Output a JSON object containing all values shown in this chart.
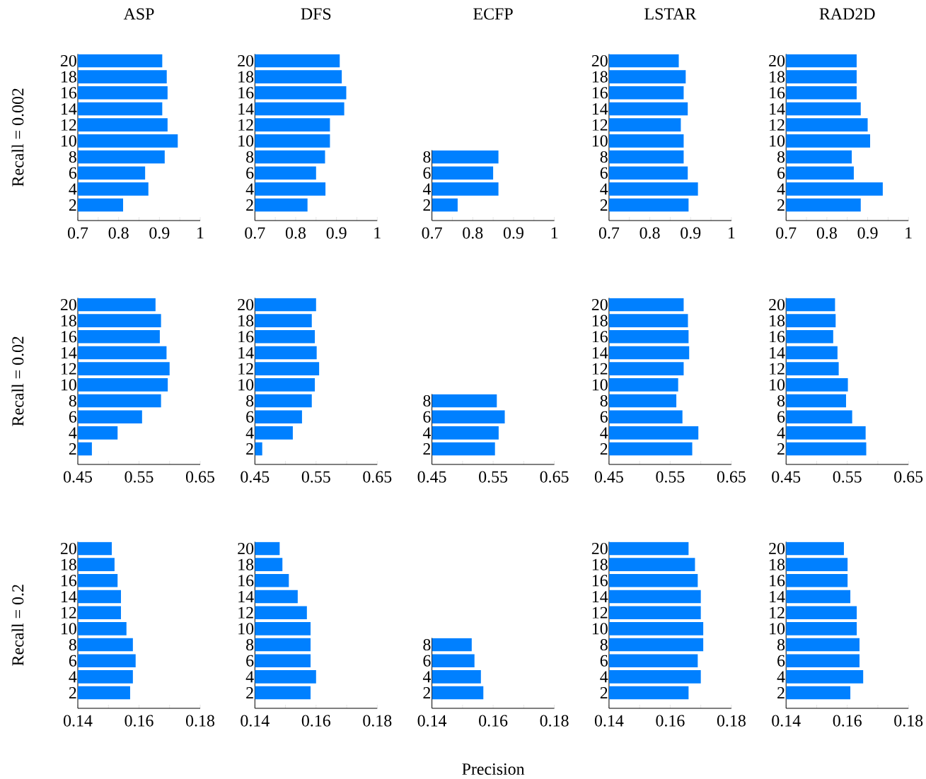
{
  "chart_data": [
    {
      "type": "bar",
      "orientation": "horizontal",
      "title": "ASP",
      "ylabel": "Recall = 0.002",
      "color": "#0080ff",
      "categories": [
        "20",
        "18",
        "16",
        "14",
        "12",
        "10",
        "8",
        "6",
        "4",
        "2"
      ],
      "values": [
        0.907,
        0.918,
        0.92,
        0.907,
        0.92,
        0.945,
        0.913,
        0.865,
        0.873,
        0.811
      ],
      "xlim": [
        0.7,
        1
      ],
      "xticks": [
        0.7,
        {
          "value": 0.75,
          "label": null
        },
        0.8,
        {
          "value": 0.85,
          "label": null
        },
        0.9,
        {
          "value": 0.95,
          "label": null
        },
        1
      ]
    },
    {
      "type": "bar",
      "orientation": "horizontal",
      "title": "DFS",
      "color": "#0080ff",
      "categories": [
        "20",
        "18",
        "16",
        "14",
        "12",
        "10",
        "8",
        "6",
        "4",
        "2"
      ],
      "values": [
        0.908,
        0.913,
        0.924,
        0.919,
        0.884,
        0.884,
        0.872,
        0.85,
        0.873,
        0.829
      ],
      "xlim": [
        0.7,
        1
      ],
      "xticks": [
        0.7,
        {
          "value": 0.75,
          "label": null
        },
        0.8,
        {
          "value": 0.85,
          "label": null
        },
        0.9,
        {
          "value": 0.95,
          "label": null
        },
        1
      ]
    },
    {
      "type": "bar",
      "orientation": "horizontal",
      "title": "ECFP",
      "color": "#0080ff",
      "categories": [
        "8",
        "6",
        "4",
        "2"
      ],
      "values": [
        0.863,
        0.85,
        0.863,
        0.763
      ],
      "xlim": [
        0.7,
        1
      ],
      "xticks": [
        0.7,
        {
          "value": 0.75,
          "label": null
        },
        0.8,
        {
          "value": 0.85,
          "label": null
        },
        0.9,
        {
          "value": 0.95,
          "label": null
        },
        1
      ]
    },
    {
      "type": "bar",
      "orientation": "horizontal",
      "title": "LSTAR",
      "color": "#0080ff",
      "categories": [
        "20",
        "18",
        "16",
        "14",
        "12",
        "10",
        "8",
        "6",
        "4",
        "2"
      ],
      "values": [
        0.871,
        0.888,
        0.883,
        0.893,
        0.876,
        0.883,
        0.883,
        0.893,
        0.918,
        0.895
      ],
      "xlim": [
        0.7,
        1
      ],
      "xticks": [
        0.7,
        {
          "value": 0.75,
          "label": null
        },
        0.8,
        {
          "value": 0.85,
          "label": null
        },
        0.9,
        {
          "value": 0.95,
          "label": null
        },
        1
      ]
    },
    {
      "type": "bar",
      "orientation": "horizontal",
      "title": "RAD2D",
      "color": "#0080ff",
      "categories": [
        "20",
        "18",
        "16",
        "14",
        "12",
        "10",
        "8",
        "6",
        "4",
        "2"
      ],
      "values": [
        0.873,
        0.873,
        0.873,
        0.883,
        0.9,
        0.906,
        0.861,
        0.866,
        0.937,
        0.883
      ],
      "xlim": [
        0.7,
        1
      ],
      "xticks": [
        0.7,
        {
          "value": 0.75,
          "label": null
        },
        0.8,
        {
          "value": 0.85,
          "label": null
        },
        0.9,
        {
          "value": 0.95,
          "label": null
        },
        1
      ]
    },
    {
      "type": "bar",
      "orientation": "horizontal",
      "ylabel": "Recall = 0.02",
      "color": "#0080ff",
      "categories": [
        "20",
        "18",
        "16",
        "14",
        "12",
        "10",
        "8",
        "6",
        "4",
        "2"
      ],
      "values": [
        0.577,
        0.586,
        0.584,
        0.595,
        0.6,
        0.597,
        0.586,
        0.555,
        0.515,
        0.473
      ],
      "xlim": [
        0.45,
        0.65
      ],
      "xticks": [
        0.45,
        {
          "value": 0.5,
          "label": null
        },
        0.55,
        {
          "value": 0.6,
          "label": null
        },
        0.65
      ]
    },
    {
      "type": "bar",
      "orientation": "horizontal",
      "color": "#0080ff",
      "categories": [
        "20",
        "18",
        "16",
        "14",
        "12",
        "10",
        "8",
        "6",
        "4",
        "2"
      ],
      "values": [
        0.55,
        0.543,
        0.548,
        0.551,
        0.555,
        0.548,
        0.543,
        0.527,
        0.512,
        0.462
      ],
      "xlim": [
        0.45,
        0.65
      ],
      "xticks": [
        0.45,
        {
          "value": 0.5,
          "label": null
        },
        0.55,
        {
          "value": 0.6,
          "label": null
        },
        0.65
      ]
    },
    {
      "type": "bar",
      "orientation": "horizontal",
      "color": "#0080ff",
      "categories": [
        "8",
        "6",
        "4",
        "2"
      ],
      "values": [
        0.556,
        0.569,
        0.559,
        0.553
      ],
      "xlim": [
        0.45,
        0.65
      ],
      "xticks": [
        0.45,
        {
          "value": 0.5,
          "label": null
        },
        0.55,
        {
          "value": 0.6,
          "label": null
        },
        0.65
      ]
    },
    {
      "type": "bar",
      "orientation": "horizontal",
      "color": "#0080ff",
      "categories": [
        "20",
        "18",
        "16",
        "14",
        "12",
        "10",
        "8",
        "6",
        "4",
        "2"
      ],
      "values": [
        0.572,
        0.579,
        0.58,
        0.581,
        0.572,
        0.563,
        0.56,
        0.57,
        0.596,
        0.586
      ],
      "xlim": [
        0.45,
        0.65
      ],
      "xticks": [
        0.45,
        {
          "value": 0.5,
          "label": null
        },
        0.55,
        {
          "value": 0.6,
          "label": null
        },
        0.65
      ]
    },
    {
      "type": "bar",
      "orientation": "horizontal",
      "color": "#0080ff",
      "categories": [
        "20",
        "18",
        "16",
        "14",
        "12",
        "10",
        "8",
        "6",
        "4",
        "2"
      ],
      "values": [
        0.53,
        0.531,
        0.527,
        0.534,
        0.536,
        0.551,
        0.548,
        0.558,
        0.58,
        0.581
      ],
      "xlim": [
        0.45,
        0.65
      ],
      "xticks": [
        0.45,
        {
          "value": 0.5,
          "label": null
        },
        0.55,
        {
          "value": 0.6,
          "label": null
        },
        0.65
      ]
    },
    {
      "type": "bar",
      "orientation": "horizontal",
      "ylabel": "Recall = 0.2",
      "color": "#0080ff",
      "categories": [
        "20",
        "18",
        "16",
        "14",
        "12",
        "10",
        "8",
        "6",
        "4",
        "2"
      ],
      "values": [
        0.1511,
        0.152,
        0.153,
        0.1541,
        0.1541,
        0.1559,
        0.158,
        0.1589,
        0.158,
        0.1571
      ],
      "xlim": [
        0.14,
        0.18
      ],
      "xticks": [
        0.14,
        {
          "value": 0.15,
          "label": null
        },
        0.16,
        {
          "value": 0.17,
          "label": null
        },
        0.18
      ]
    },
    {
      "type": "bar",
      "orientation": "horizontal",
      "color": "#0080ff",
      "categories": [
        "20",
        "18",
        "16",
        "14",
        "12",
        "10",
        "8",
        "6",
        "4",
        "2"
      ],
      "values": [
        0.1481,
        0.149,
        0.1511,
        0.154,
        0.157,
        0.1582,
        0.1582,
        0.1582,
        0.16,
        0.1582
      ],
      "xlim": [
        0.14,
        0.18
      ],
      "xticks": [
        0.14,
        {
          "value": 0.15,
          "label": null
        },
        0.16,
        {
          "value": 0.17,
          "label": null
        },
        0.18
      ]
    },
    {
      "type": "bar",
      "orientation": "horizontal",
      "xlabel": "Precision",
      "color": "#0080ff",
      "categories": [
        "8",
        "6",
        "4",
        "2"
      ],
      "values": [
        0.153,
        0.1539,
        0.156,
        0.1568
      ],
      "xlim": [
        0.14,
        0.18
      ],
      "xticks": [
        0.14,
        {
          "value": 0.15,
          "label": null
        },
        0.16,
        {
          "value": 0.17,
          "label": null
        },
        0.18
      ]
    },
    {
      "type": "bar",
      "orientation": "horizontal",
      "color": "#0080ff",
      "categories": [
        "20",
        "18",
        "16",
        "14",
        "12",
        "10",
        "8",
        "6",
        "4",
        "2"
      ],
      "values": [
        0.166,
        0.1681,
        0.169,
        0.17,
        0.17,
        0.1708,
        0.1708,
        0.169,
        0.17,
        0.166
      ],
      "xlim": [
        0.14,
        0.18
      ],
      "xticks": [
        0.14,
        {
          "value": 0.15,
          "label": null
        },
        0.16,
        {
          "value": 0.17,
          "label": null
        },
        0.18
      ]
    },
    {
      "type": "bar",
      "orientation": "horizontal",
      "color": "#0080ff",
      "categories": [
        "20",
        "18",
        "16",
        "14",
        "12",
        "10",
        "8",
        "6",
        "4",
        "2"
      ],
      "values": [
        0.1589,
        0.1601,
        0.1601,
        0.161,
        0.1631,
        0.1631,
        0.164,
        0.164,
        0.1652,
        0.161
      ],
      "xlim": [
        0.14,
        0.18
      ],
      "xticks": [
        0.14,
        {
          "value": 0.15,
          "label": null
        },
        0.16,
        {
          "value": 0.17,
          "label": null
        },
        0.18
      ]
    }
  ]
}
